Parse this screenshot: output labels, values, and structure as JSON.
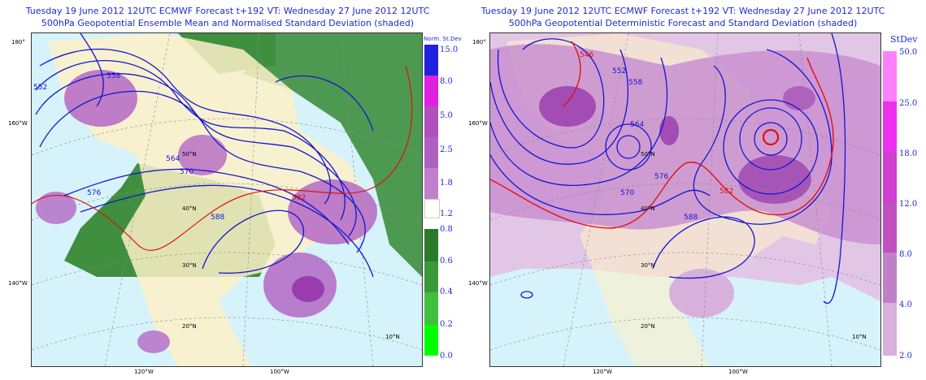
{
  "left": {
    "title_line1": "Tuesday 19 June 2012 12UTC ECMWF Forecast t+192  VT: Wednesday 27 June 2012 12UTC",
    "title_line2": "500hPa Geopotential Ensemble Mean and Normalised Standard Deviation (shaded)",
    "colorbar_title": "Norm. St.Dev",
    "colorbar_upper": [
      {
        "label": "15.0",
        "color": "#2020e0"
      },
      {
        "label": "8.0",
        "color": "#e020e0"
      },
      {
        "label": "5.0",
        "color": "#b050c0"
      },
      {
        "label": "2.5",
        "color": "#b060c0"
      },
      {
        "label": "1.8",
        "color": "#c07fcc"
      },
      {
        "label": "1.2",
        "color": "#ffffff"
      }
    ],
    "colorbar_lower": [
      {
        "label": "0.8",
        "color": "#2a7a2a"
      },
      {
        "label": "0.6",
        "color": "#3a9a3a"
      },
      {
        "label": "0.4",
        "color": "#40c040"
      },
      {
        "label": "0.2",
        "color": "#30e030"
      },
      {
        "label": "0.0",
        "color": "#00ff00"
      }
    ],
    "contours": [
      "552",
      "558",
      "564",
      "570",
      "576",
      "582",
      "588",
      "552",
      "558",
      "564",
      "570",
      "576",
      "582",
      "588",
      "564",
      "570",
      "576",
      "582",
      "588"
    ],
    "latlon": {
      "lon_left_top": "180°",
      "lon_left_mid": "160°W",
      "lon_left_low": "140°W",
      "bottom_1": "120°W",
      "bottom_2": "100°W",
      "lat_50": "50°N",
      "lat_40": "40°N",
      "lat_30": "30°N",
      "lat_20": "20°N",
      "lat_10": "10°N"
    }
  },
  "right": {
    "title_line1": "Tuesday 19 June 2012 12UTC ECMWF Forecast t+192  VT: Wednesday 27 June 2012 12UTC",
    "title_line2": "500hPa Geopotential Deterministic Forecast and Standard Deviation (shaded)",
    "colorbar_title": "StDev",
    "colorbar": [
      {
        "label": "50.0",
        "color": "#ff80ff"
      },
      {
        "label": "25.0",
        "color": "#ee30ee"
      },
      {
        "label": "18.0",
        "color": "#d040d0"
      },
      {
        "label": "12.0",
        "color": "#c050c0"
      },
      {
        "label": "8.0",
        "color": "#c080c8"
      },
      {
        "label": "4.0",
        "color": "#d8b0dc"
      },
      {
        "label": "2.0",
        "color": "#ffffff"
      }
    ],
    "contours": [
      "546",
      "552",
      "558",
      "564",
      "570",
      "576",
      "582",
      "588",
      "570",
      "576",
      "582",
      "588"
    ],
    "latlon": {
      "lon_left_top": "180°",
      "lon_left_mid": "160°W",
      "lon_left_low": "140°W",
      "bottom_1": "120°W",
      "bottom_2": "100°W",
      "lat_50": "50°N",
      "lat_40": "40°N",
      "lat_30": "30°N",
      "lat_20": "20°N",
      "lat_10": "10°N"
    }
  },
  "colors": {
    "ocean": "#d6f2fa",
    "land": "#fdf1c8",
    "title": "#1d2ad6",
    "contour": "#1515d0",
    "contour_red": "#e01010"
  }
}
